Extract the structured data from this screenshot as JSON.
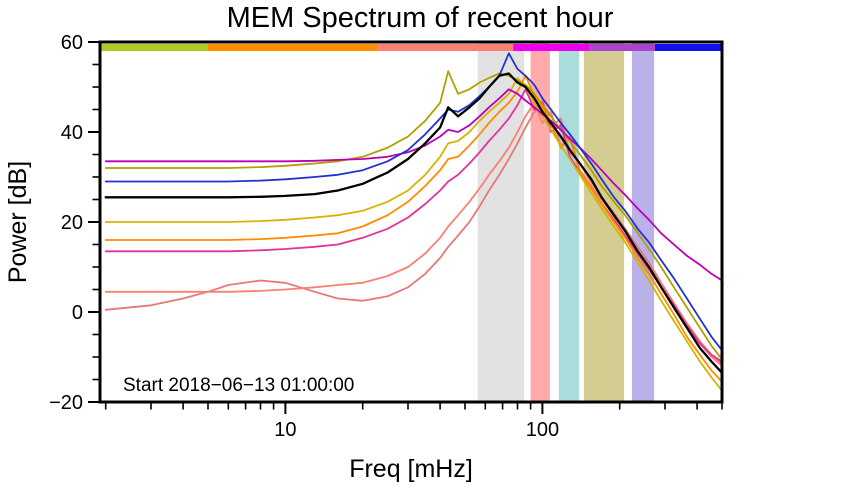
{
  "chart_data": {
    "type": "line",
    "title": "MEM Spectrum of recent hour",
    "xlabel": "Freq [mHz]",
    "ylabel": "Power [dB]",
    "annotation": "Start 2018−06−13 01:00:00",
    "xscale": "log",
    "xlim": [
      1.9,
      500
    ],
    "ylim": [
      -20,
      60
    ],
    "grid": false,
    "legend": "none",
    "xticks": {
      "major": [
        10,
        100
      ],
      "minor": [
        2,
        3,
        4,
        5,
        6,
        7,
        8,
        9,
        20,
        30,
        40,
        50,
        60,
        70,
        80,
        90,
        200,
        300,
        400,
        500
      ]
    },
    "yticks": {
      "major_step": 20,
      "minor_step": 5
    },
    "x": [
      2,
      3,
      4,
      5,
      6,
      8,
      10,
      13,
      16,
      20,
      25,
      30,
      35,
      40,
      43,
      47,
      52,
      57,
      62,
      68,
      74,
      80,
      86,
      93,
      100,
      108,
      118,
      128,
      140,
      155,
      170,
      190,
      210,
      235,
      260,
      290,
      325,
      365,
      410,
      455,
      500
    ],
    "series": [
      {
        "name": "salmon-light",
        "color": "#e87878",
        "width": 1.8,
        "y": [
          0.5,
          1.5,
          3,
          4.5,
          6,
          7,
          6.5,
          4.5,
          3,
          2.5,
          3.5,
          5.5,
          8.5,
          12,
          14.5,
          17,
          20,
          23.5,
          27,
          30.5,
          34,
          37.5,
          41,
          44.5,
          47,
          41,
          43,
          35.5,
          33,
          29,
          25.5,
          22,
          18.5,
          14.5,
          11,
          6.5,
          2,
          -2.5,
          -6.5,
          -9.5,
          -11.5
        ]
      },
      {
        "name": "salmon",
        "color": "#fa8072",
        "width": 1.8,
        "y": [
          4.5,
          4.5,
          4.5,
          4.5,
          4.5,
          4.7,
          5,
          5.5,
          6,
          6.5,
          8,
          10,
          13,
          16.5,
          19,
          21.5,
          24.5,
          27.5,
          30.5,
          33.5,
          36.5,
          40,
          43.5,
          46.5,
          42,
          44.5,
          37,
          39,
          31.5,
          28,
          25,
          21.5,
          18,
          13.5,
          10,
          6,
          1.5,
          -3,
          -7,
          -10,
          -12
        ]
      },
      {
        "name": "pink",
        "color": "#e23399",
        "width": 1.8,
        "y": [
          13.5,
          13.5,
          13.5,
          13.5,
          13.5,
          13.7,
          14,
          14.5,
          15,
          16.5,
          18.5,
          21,
          24,
          27,
          29,
          30.5,
          33,
          35.5,
          38,
          40.5,
          43,
          46,
          49.5,
          45,
          46.5,
          40,
          41.5,
          34.5,
          31,
          27.5,
          24,
          20.5,
          17,
          13,
          9.5,
          5.5,
          1.5,
          -3,
          -7,
          -9.5,
          -11
        ]
      },
      {
        "name": "orange",
        "color": "#ff8c00",
        "width": 1.8,
        "y": [
          16,
          16,
          16,
          16,
          16,
          16.2,
          16.5,
          17,
          17.5,
          19,
          21.5,
          24.5,
          28,
          31.5,
          34,
          34.5,
          37,
          39.5,
          42,
          44.5,
          46.5,
          49,
          52.5,
          48,
          45.5,
          42,
          36.5,
          38.5,
          31,
          27.5,
          24,
          20,
          16.5,
          12,
          8.5,
          4,
          -0.5,
          -5.5,
          -9.5,
          -13,
          -15.5
        ]
      },
      {
        "name": "yellow",
        "color": "#d4b400",
        "width": 1.8,
        "y": [
          20,
          20,
          20,
          20,
          20,
          20.2,
          20.5,
          21,
          21.5,
          22.5,
          24.5,
          27,
          30.5,
          34.5,
          37.5,
          38,
          40,
          42.5,
          44.5,
          46.5,
          48.5,
          52,
          50,
          46.5,
          43.5,
          40.5,
          37,
          34,
          30.5,
          26.5,
          23,
          19,
          15.5,
          11,
          7,
          2.5,
          -2,
          -6.5,
          -11,
          -14.5,
          -17.5
        ]
      },
      {
        "name": "olive",
        "color": "#b0a000",
        "width": 1.8,
        "y": [
          32,
          32,
          32,
          32,
          32,
          32.2,
          32.5,
          33,
          33.5,
          34.5,
          36.5,
          39,
          42.5,
          46.5,
          53.5,
          48.5,
          49.5,
          51,
          52,
          53,
          52.5,
          51.5,
          50.5,
          48.5,
          46,
          43.5,
          40.5,
          38,
          35,
          31.5,
          28,
          24.5,
          21.5,
          17.5,
          14,
          10,
          5.5,
          1,
          -3.5,
          -7.5,
          -10.5
        ]
      },
      {
        "name": "magenta",
        "color": "#bb00bb",
        "width": 1.8,
        "y": [
          33.5,
          33.5,
          33.5,
          33.5,
          33.5,
          33.5,
          33.5,
          33.6,
          33.8,
          34,
          34.5,
          35.5,
          37,
          39,
          40.5,
          40,
          41.5,
          43.5,
          45.5,
          47.5,
          49.5,
          48.5,
          47,
          45.5,
          44,
          42.5,
          40.5,
          38.5,
          36.5,
          34,
          31.5,
          28.5,
          26,
          23,
          20.5,
          17.5,
          15,
          12.5,
          10.5,
          8.5,
          7
        ]
      },
      {
        "name": "blue",
        "color": "#2233cc",
        "width": 1.8,
        "y": [
          29,
          29,
          29,
          29,
          29,
          29.2,
          29.5,
          30,
          30.5,
          31.5,
          33.5,
          36,
          39.5,
          43,
          45,
          44.5,
          46,
          48,
          50,
          52.5,
          57.5,
          54,
          52.5,
          50.5,
          47.5,
          45,
          42,
          39.5,
          36.5,
          33,
          29.5,
          25.5,
          22.5,
          18.5,
          15.5,
          11.5,
          7.5,
          3,
          -1.5,
          -5.5,
          -8.5
        ]
      },
      {
        "name": "mean-black",
        "color": "#000000",
        "width": 2.3,
        "y": [
          25.5,
          25.5,
          25.5,
          25.5,
          25.5,
          25.6,
          25.8,
          26.2,
          27,
          28.5,
          31,
          34,
          37.5,
          41,
          45.5,
          43.5,
          45.5,
          47.5,
          50,
          52.5,
          53,
          51,
          50,
          47.5,
          44.5,
          42,
          39,
          36,
          33,
          29.5,
          25.5,
          21.5,
          18,
          13.5,
          10,
          5.5,
          1,
          -3.5,
          -8,
          -11,
          -13.5
        ]
      }
    ],
    "bands": [
      {
        "name": "band-gray",
        "from": 56,
        "to": 85,
        "color": "#e2e2e2"
      },
      {
        "name": "band-red",
        "from": 90,
        "to": 107,
        "color": "#ffabab"
      },
      {
        "name": "band-cyan",
        "from": 116,
        "to": 139,
        "color": "#abdcdc"
      },
      {
        "name": "band-khaki",
        "from": 145,
        "to": 208,
        "color": "#d4cd92"
      },
      {
        "name": "band-lavender",
        "from": 223,
        "to": 272,
        "color": "#b9b1e8"
      }
    ],
    "top_bar": [
      {
        "name": "segment-chartreuse",
        "from": 1.9,
        "to": 5,
        "color": "#aacc22"
      },
      {
        "name": "segment-orange",
        "from": 5,
        "to": 23,
        "color": "#ff8c00"
      },
      {
        "name": "segment-salmon",
        "from": 23,
        "to": 77,
        "color": "#fa8072"
      },
      {
        "name": "segment-magenta",
        "from": 77,
        "to": 152,
        "color": "#ee00ee"
      },
      {
        "name": "segment-purple",
        "from": 152,
        "to": 274,
        "color": "#aa44cc"
      },
      {
        "name": "segment-blue",
        "from": 274,
        "to": 500,
        "color": "#1111ee"
      }
    ]
  }
}
